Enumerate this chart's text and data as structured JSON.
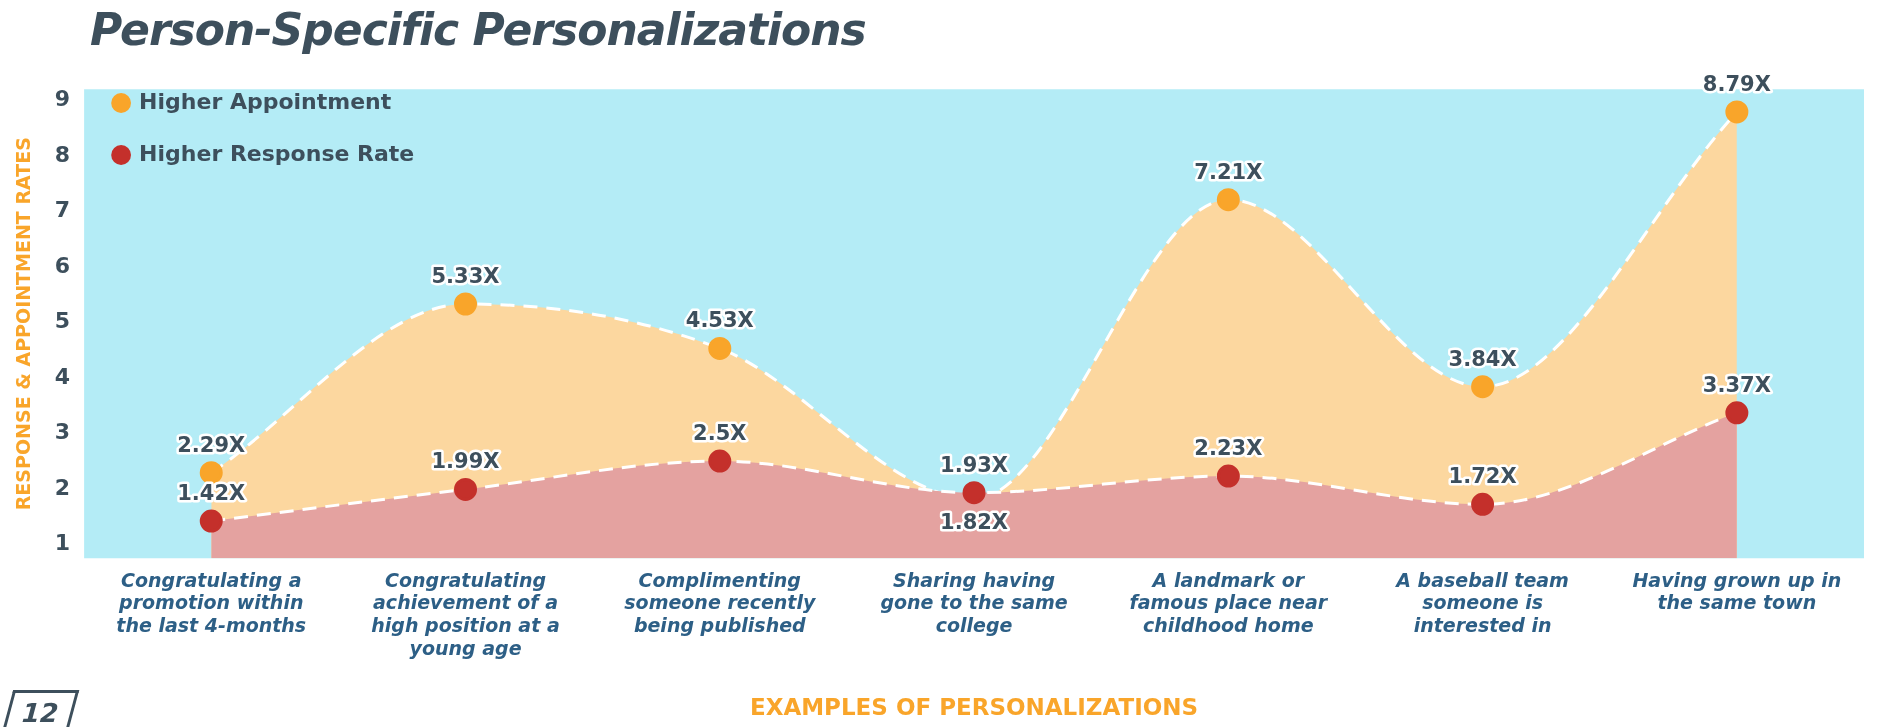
{
  "chart_data": {
    "type": "area",
    "title": "Person-Specific Personalizations",
    "xlabel": "EXAMPLES OF PERSONALIZATIONS",
    "ylabel": "RESPONSE & APPOINTMENT RATES",
    "categories": [
      "Congratulating a promotion within the last 4-months",
      "Congratulating achievement of a high position at a young age",
      "Complimenting someone recently being published",
      "Sharing having gone to the same college",
      "A landmark or famous place near childhood home",
      "A baseball team someone is interested in",
      "Having grown up in the same town"
    ],
    "series": [
      {
        "name": "Higher Appointment",
        "color": "#f9a52a",
        "values": [
          2.29,
          5.33,
          4.53,
          1.82,
          7.21,
          3.84,
          8.79
        ],
        "value_labels": [
          "2.29X",
          "5.33X",
          "4.53X",
          "1.82X",
          "7.21X",
          "3.84X",
          "8.79X"
        ]
      },
      {
        "name": "Higher Response Rate",
        "color": "#c4302b",
        "values": [
          1.42,
          1.99,
          2.5,
          1.93,
          2.23,
          1.72,
          3.37
        ],
        "value_labels": [
          "1.42X",
          "1.99X",
          "2.5X",
          "1.93X",
          "2.23X",
          "1.72X",
          "3.37X"
        ]
      }
    ],
    "ylim": [
      0.75,
      9.2
    ],
    "yticks": [
      1,
      2,
      3,
      4,
      5,
      6,
      7,
      8,
      9
    ],
    "grid": false,
    "legend": "top left",
    "marker": "circle",
    "line_style": "dashed",
    "annotations": [
      "12"
    ]
  }
}
